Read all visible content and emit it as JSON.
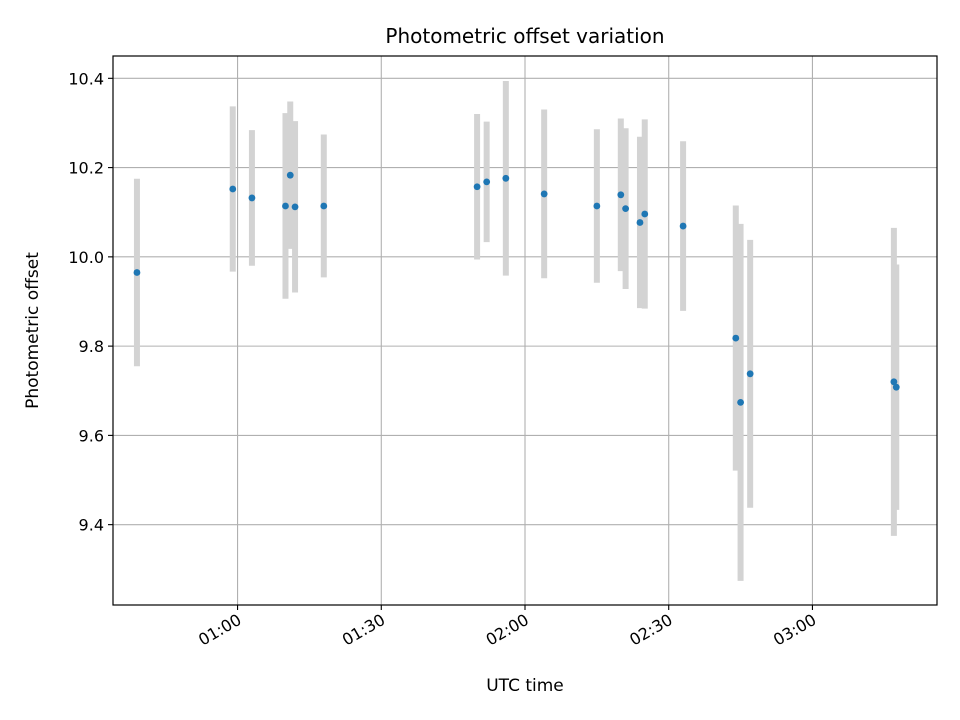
{
  "chart_data": {
    "type": "scatter",
    "title": "Photometric offset variation",
    "xlabel": "UTC time",
    "ylabel": "Photometric offset",
    "xlim": [
      "00:34",
      "03:26"
    ],
    "ylim": [
      9.22,
      10.45
    ],
    "x_ticks": [
      "01:00",
      "01:30",
      "02:00",
      "02:30",
      "03:00"
    ],
    "y_ticks": [
      9.4,
      9.6,
      9.8,
      10.0,
      10.2,
      10.4
    ],
    "grid": true,
    "colors": {
      "points": "#1f77b4",
      "errorbars": "#d3d3d3",
      "grid": "#b0b0b0"
    },
    "series": [
      {
        "points": [
          {
            "x": "00:39",
            "y": 9.965,
            "yerr": 0.21
          },
          {
            "x": "00:59",
            "y": 10.152,
            "yerr": 0.185
          },
          {
            "x": "01:03",
            "y": 10.132,
            "yerr": 0.152
          },
          {
            "x": "01:10",
            "y": 10.114,
            "yerr": 0.208
          },
          {
            "x": "01:11",
            "y": 10.183,
            "yerr": 0.165
          },
          {
            "x": "01:12",
            "y": 10.112,
            "yerr": 0.192
          },
          {
            "x": "01:18",
            "y": 10.114,
            "yerr": 0.16
          },
          {
            "x": "01:50",
            "y": 10.157,
            "yerr": 0.163
          },
          {
            "x": "01:52",
            "y": 10.168,
            "yerr": 0.135
          },
          {
            "x": "01:56",
            "y": 10.176,
            "yerr": 0.218
          },
          {
            "x": "02:04",
            "y": 10.141,
            "yerr": 0.189
          },
          {
            "x": "02:15",
            "y": 10.114,
            "yerr": 0.172
          },
          {
            "x": "02:20",
            "y": 10.139,
            "yerr": 0.171
          },
          {
            "x": "02:21",
            "y": 10.108,
            "yerr": 0.18
          },
          {
            "x": "02:24",
            "y": 10.077,
            "yerr": 0.192
          },
          {
            "x": "02:25",
            "y": 10.096,
            "yerr": 0.212
          },
          {
            "x": "02:33",
            "y": 10.069,
            "yerr": 0.19
          },
          {
            "x": "02:44",
            "y": 9.818,
            "yerr": 0.297
          },
          {
            "x": "02:45",
            "y": 9.674,
            "yerr": 0.4
          },
          {
            "x": "02:47",
            "y": 9.738,
            "yerr": 0.3
          },
          {
            "x": "03:17",
            "y": 9.72,
            "yerr": 0.345
          },
          {
            "x": "03:17.5",
            "y": 9.708,
            "yerr": 0.275
          }
        ]
      }
    ]
  }
}
